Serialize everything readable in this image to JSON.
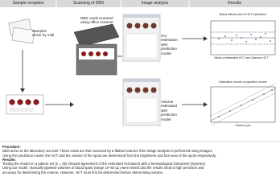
{
  "header": {
    "columns": [
      "Sample reception",
      "Scanning of DBS",
      "Image analysis",
      "Results"
    ]
  },
  "labels": {
    "samples": "Samples arrive by mail",
    "scanner": "DBS cards scanned using office scanner",
    "hct": "Hct estimation with prediction model",
    "volume": "Volume estimated with prediction model"
  },
  "charts": [
    {
      "title": "Bland-Altman plot of HCT estimation",
      "xlabel": "Mean of estimated HCT and Sysmex HCT"
    },
    {
      "title": "Estimated volume vs pipetted volume",
      "xlabel": "Volume (µL)"
    }
  ],
  "body": {
    "procedure_heading": "Procedure:",
    "procedure_lines": [
      "DBS arrive to the laboratory via mail. These cards are then scanned by a flatbed scanner then image analysis is performed using ImageJ.",
      "Using the prediction model, the HCT and the volume of the spots are determined from the brightness and hue area of the spots respectively."
    ],
    "results_heading": "Results:",
    "results_lines": [
      "Testing the model on a patient set (n = 35) showed agreement of the estimated hematocrit with a hematological instrument (Sysmex).",
      "Using our model, manually pipetted volumes of blood spots (range 10–60 µL) were tested and the results show a high precision and",
      "accuracy for determining the volume. However, HCT must first be determined before determining volume."
    ]
  }
}
